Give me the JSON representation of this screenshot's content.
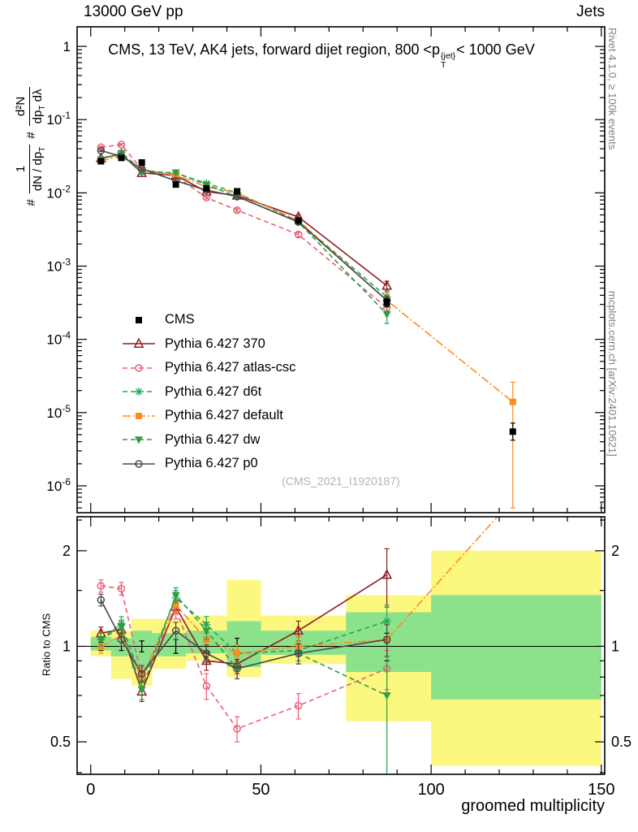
{
  "header": {
    "left": "13000 GeV pp",
    "right": "Jets"
  },
  "side": {
    "top": "Rivet 4.1.0, ≥ 100k events",
    "bottom": "mcplots.cern.ch [arXiv:2401.10621]"
  },
  "title": {
    "text": "CMS, 13 TeV, AK4 jets, forward dijet region, 800 <p",
    "p_sup": "{jet}",
    "p_sub": "T",
    "tail": "< 1000 GeV"
  },
  "ylabel": {
    "hash1": "#",
    "frac1_num": "1",
    "frac1_den_a": "dN / dp",
    "frac1_den_sub": "T",
    "hash2": "#",
    "frac2_num": "d²N",
    "frac2_den_a": "dp",
    "frac2_den_sub": "T",
    "frac2_den_b": " dλ"
  },
  "ratio_ylabel": "Ratio to CMS",
  "xlabel": "groomed multiplicity",
  "watermark": "(CMS_2021_I1920187)",
  "chart_data": {
    "type": "line",
    "title": "CMS, 13 TeV, AK4 jets, forward dijet region, 800 < pT{jet} < 1000 GeV",
    "xlabel": "groomed multiplicity",
    "ylabel": "1/(dN/dpT) d²N/(dpT dλ)",
    "xlim": [
      -4,
      151
    ],
    "xticks": [
      0,
      50,
      100,
      150
    ],
    "x": [
      3,
      9,
      15,
      25,
      34,
      43,
      61,
      87
    ],
    "main": {
      "ylog": true,
      "ylim": [
        4.3e-07,
        1.85
      ],
      "ytick_exponents": [
        0,
        -1,
        -2,
        -3,
        -4,
        -5,
        -6
      ],
      "series": [
        {
          "name": "CMS",
          "color": "#000000",
          "marker": "square-filled",
          "line": "none",
          "y": [
            0.027,
            0.03,
            0.026,
            0.013,
            0.0115,
            0.0105,
            0.0042,
            0.00032
          ],
          "yerr_rel": [
            0.04,
            0.04,
            0.05,
            0.05,
            0.05,
            0.06,
            0.08,
            0.12
          ],
          "extra": {
            "x": 124,
            "y": 5.5e-06,
            "ylo": 4.2e-06,
            "yhi": 7.2e-06
          }
        },
        {
          "name": "Pythia 6.427 370",
          "color": "#8f1d22",
          "marker": "triangle-open",
          "line": "solid",
          "y": [
            0.0297,
            0.0339,
            0.0187,
            0.0173,
            0.0104,
            0.0092,
            0.0047,
            0.00054
          ],
          "yerr_rel": [
            0.03,
            0.03,
            0.04,
            0.04,
            0.04,
            0.05,
            0.07,
            0.15
          ]
        },
        {
          "name": "Pythia 6.427 atlas-csc",
          "color": "#ec5f77",
          "marker": "circle-open",
          "line": "dash",
          "y": [
            0.0419,
            0.0456,
            0.0208,
            0.0169,
            0.0086,
            0.0058,
            0.0027,
            0.00027
          ],
          "yerr_rel": [
            0.03,
            0.03,
            0.04,
            0.04,
            0.04,
            0.05,
            0.07,
            0.15
          ]
        },
        {
          "name": "Pythia 6.427 d6t",
          "color": "#1fa75f",
          "marker": "asterisk",
          "line": "dash",
          "y": [
            0.0284,
            0.0354,
            0.0203,
            0.0185,
            0.0135,
            0.01,
            0.0041,
            0.00038
          ],
          "yerr_rel": [
            0.03,
            0.03,
            0.04,
            0.04,
            0.04,
            0.05,
            0.07,
            0.15
          ]
        },
        {
          "name": "Pythia 6.427 default",
          "color": "#ff8a1e",
          "marker": "square-filled",
          "line": "dashdot",
          "y": [
            0.027,
            0.0324,
            0.0208,
            0.0176,
            0.0121,
            0.01,
            0.0042,
            0.00034
          ],
          "yerr_rel": [
            0.03,
            0.03,
            0.04,
            0.04,
            0.04,
            0.05,
            0.07,
            0.2
          ],
          "extra": {
            "x": 124,
            "y": 1.4e-05,
            "ylo": 5e-07,
            "yhi": 2.6e-05
          }
        },
        {
          "name": "Pythia 6.427 dw",
          "color": "#2f9e41",
          "marker": "triangle-down-filled",
          "line": "dash",
          "y": [
            0.0284,
            0.0345,
            0.019,
            0.0189,
            0.0129,
            0.0089,
            0.004,
            0.00022
          ],
          "yerr_rel": [
            0.03,
            0.03,
            0.04,
            0.04,
            0.04,
            0.05,
            0.07,
            0.25
          ]
        },
        {
          "name": "Pythia 6.427 p0",
          "color": "#4a4a4a",
          "marker": "circle-open",
          "line": "solid",
          "y": [
            0.0378,
            0.0315,
            0.0213,
            0.0146,
            0.0109,
            0.0089,
            0.004,
            0.00034
          ],
          "yerr_rel": [
            0.03,
            0.03,
            0.04,
            0.04,
            0.04,
            0.05,
            0.07,
            0.15
          ]
        }
      ]
    },
    "ratio": {
      "ylog": true,
      "ylim": [
        0.395,
        2.56
      ],
      "yticks": [
        0.5,
        1,
        2
      ],
      "yminors": [
        0.4,
        0.6,
        0.7,
        0.8,
        0.9,
        1.5,
        2.5
      ],
      "band_colors": {
        "yellow": "#fcf77f",
        "green": "#8be28b"
      },
      "bands": [
        {
          "x0": 0,
          "x1": 6,
          "yellow": [
            0.93,
            1.12
          ],
          "green": [
            0.97,
            1.07
          ]
        },
        {
          "x0": 6,
          "x1": 12,
          "yellow": [
            0.79,
            1.12
          ],
          "green": [
            0.93,
            1.06
          ]
        },
        {
          "x0": 12,
          "x1": 18,
          "yellow": [
            0.75,
            1.22
          ],
          "green": [
            0.85,
            1.12
          ]
        },
        {
          "x0": 18,
          "x1": 28,
          "yellow": [
            0.85,
            1.22
          ],
          "green": [
            0.93,
            1.1
          ]
        },
        {
          "x0": 28,
          "x1": 40,
          "yellow": [
            0.9,
            1.25
          ],
          "green": [
            0.95,
            1.12
          ]
        },
        {
          "x0": 40,
          "x1": 50,
          "yellow": [
            0.8,
            1.62
          ],
          "green": [
            0.86,
            1.2
          ]
        },
        {
          "x0": 50,
          "x1": 75,
          "yellow": [
            0.88,
            1.25
          ],
          "green": [
            0.94,
            1.12
          ]
        },
        {
          "x0": 75,
          "x1": 100,
          "yellow": [
            0.58,
            1.45
          ],
          "green": [
            0.83,
            1.28
          ]
        },
        {
          "x0": 100,
          "x1": 150,
          "yellow": [
            0.42,
            2.0
          ],
          "green": [
            0.68,
            1.45
          ]
        }
      ],
      "series": [
        {
          "name": "CMS",
          "color": "#000000",
          "marker": "none",
          "line": "none",
          "y": [
            1,
            1,
            1,
            1,
            1,
            1,
            1,
            1
          ],
          "yerr": [
            0.03,
            0.03,
            0.04,
            0.05,
            0.05,
            0.06,
            0.07,
            0.1
          ]
        },
        {
          "name": "Pythia 6.427 370",
          "color": "#8f1d22",
          "marker": "triangle-open",
          "line": "solid",
          "y": [
            1.1,
            1.13,
            0.72,
            1.33,
            0.9,
            0.88,
            1.12,
            1.68
          ],
          "yerr": [
            0.05,
            0.05,
            0.05,
            0.06,
            0.06,
            0.06,
            0.08,
            0.35
          ]
        },
        {
          "name": "Pythia 6.427 atlas-csc",
          "color": "#ec5f77",
          "marker": "circle-open",
          "line": "dash",
          "y": [
            1.55,
            1.52,
            0.8,
            1.3,
            0.75,
            0.55,
            0.65,
            0.85
          ],
          "yerr": [
            0.07,
            0.07,
            0.06,
            0.08,
            0.07,
            0.05,
            0.06,
            0.12
          ]
        },
        {
          "name": "Pythia 6.427 d6t",
          "color": "#1fa75f",
          "marker": "asterisk",
          "line": "dash",
          "y": [
            1.05,
            1.18,
            0.78,
            1.42,
            1.17,
            0.95,
            0.97,
            1.2
          ],
          "yerr": [
            0.05,
            0.06,
            0.05,
            0.08,
            0.07,
            0.06,
            0.07,
            0.15
          ]
        },
        {
          "name": "Pythia 6.427 default",
          "color": "#ff8a1e",
          "marker": "square-filled",
          "line": "dashdot",
          "y": [
            1.0,
            1.08,
            0.8,
            1.35,
            1.05,
            0.95,
            1.0,
            1.05
          ],
          "yerr": [
            0.05,
            0.05,
            0.05,
            0.07,
            0.06,
            0.06,
            0.07,
            0.12
          ],
          "extra": {
            "x": 124,
            "y": 2.9
          }
        },
        {
          "name": "Pythia 6.427 dw",
          "color": "#2f9e41",
          "marker": "triangle-down-filled",
          "line": "dash",
          "y": [
            1.05,
            1.15,
            0.73,
            1.45,
            1.12,
            0.85,
            0.95,
            0.7
          ],
          "yerr": [
            0.05,
            0.06,
            0.05,
            0.08,
            0.07,
            0.06,
            0.07,
            0.32
          ]
        },
        {
          "name": "Pythia 6.427 p0",
          "color": "#4a4a4a",
          "marker": "circle-open",
          "line": "solid",
          "y": [
            1.4,
            1.05,
            0.82,
            1.12,
            0.95,
            0.85,
            0.95,
            1.05
          ],
          "yerr": [
            0.06,
            0.05,
            0.05,
            0.07,
            0.06,
            0.06,
            0.07,
            0.12
          ]
        }
      ]
    }
  }
}
